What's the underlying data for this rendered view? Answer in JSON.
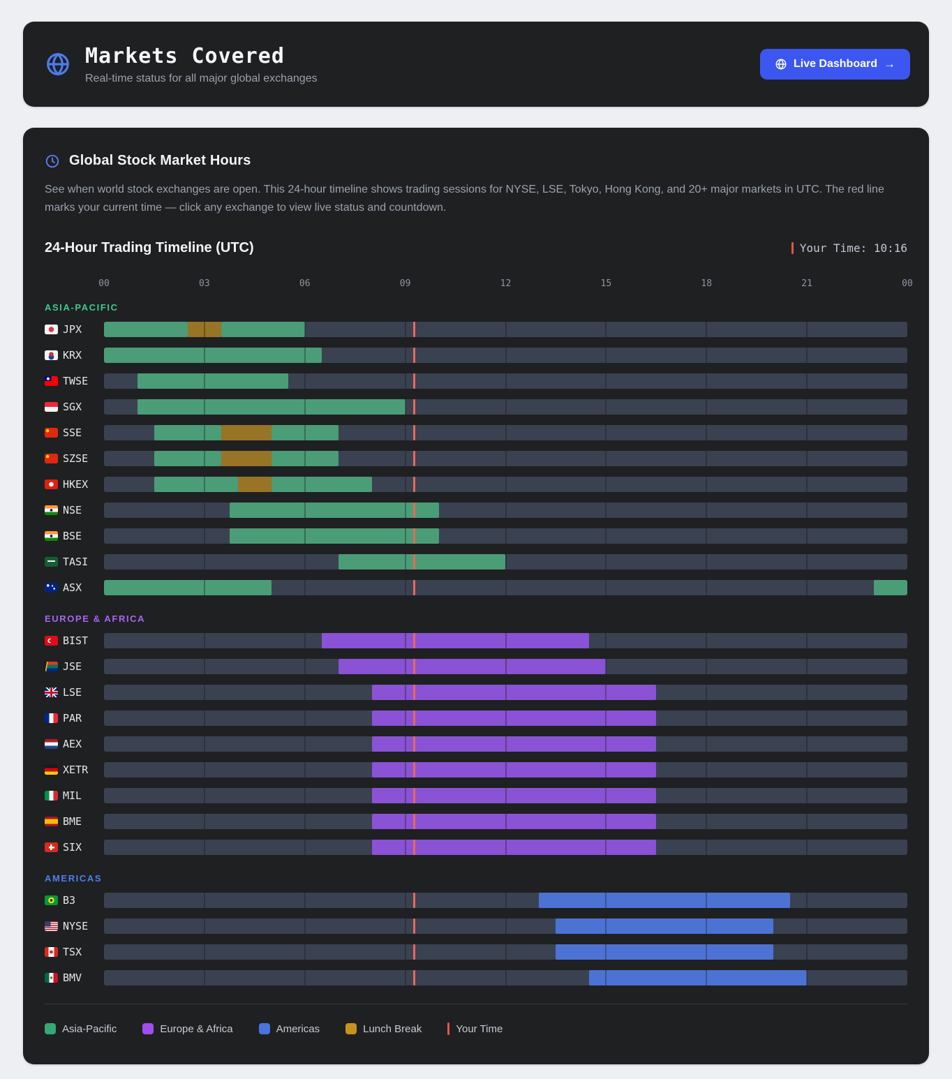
{
  "header": {
    "title": "Markets Covered",
    "subtitle": "Real-time status for all major global exchanges",
    "live_dashboard_button": "Live Dashboard",
    "arrow": "→"
  },
  "market_hours": {
    "heading": "Global Stock Market Hours",
    "description": "See when world stock exchanges are open. This 24-hour timeline shows trading sessions for NYSE, LSE, Tokyo, Hong Kong, and 20+ major markets in UTC. The red line marks your current time — click any exchange to view live status and countdown.",
    "timeline_title": "24-Hour Trading Timeline (UTC)",
    "your_time": "Your Time: 10:16",
    "axis_ticks": [
      "00",
      "03",
      "06",
      "09",
      "12",
      "15",
      "18",
      "21",
      "00"
    ]
  },
  "chart_data": {
    "type": "timeline-gantt",
    "title": "24-Hour Trading Timeline (UTC)",
    "x_axis": {
      "unit": "UTC hours",
      "range": [
        0,
        24
      ],
      "ticks": [
        0,
        3,
        6,
        9,
        12,
        15,
        18,
        21,
        24
      ]
    },
    "your_time_utc_hours": 9.27,
    "colors": {
      "track": "#3a4150",
      "lunch": "#987427",
      "your_time_line": "#e8695a"
    },
    "sections": [
      {
        "name": "ASIA-PACIFIC",
        "header_color": "#3dcb8b",
        "bar_color": "#4a9d77",
        "rows": [
          {
            "code": "JPX",
            "flag": "jp",
            "segments": [
              {
                "start": 0,
                "end": 2.5,
                "kind": "session"
              },
              {
                "start": 2.5,
                "end": 3.5,
                "kind": "lunch"
              },
              {
                "start": 3.5,
                "end": 6,
                "kind": "session"
              }
            ]
          },
          {
            "code": "KRX",
            "flag": "kr",
            "segments": [
              {
                "start": 0,
                "end": 6.5,
                "kind": "session"
              }
            ]
          },
          {
            "code": "TWSE",
            "flag": "tw",
            "segments": [
              {
                "start": 1,
                "end": 5.5,
                "kind": "session"
              }
            ]
          },
          {
            "code": "SGX",
            "flag": "sg",
            "segments": [
              {
                "start": 1,
                "end": 9,
                "kind": "session"
              }
            ]
          },
          {
            "code": "SSE",
            "flag": "cn",
            "segments": [
              {
                "start": 1.5,
                "end": 3.5,
                "kind": "session"
              },
              {
                "start": 3.5,
                "end": 5,
                "kind": "lunch"
              },
              {
                "start": 5,
                "end": 7,
                "kind": "session"
              }
            ]
          },
          {
            "code": "SZSE",
            "flag": "cn",
            "segments": [
              {
                "start": 1.5,
                "end": 3.5,
                "kind": "session"
              },
              {
                "start": 3.5,
                "end": 5,
                "kind": "lunch"
              },
              {
                "start": 5,
                "end": 7,
                "kind": "session"
              }
            ]
          },
          {
            "code": "HKEX",
            "flag": "hk",
            "segments": [
              {
                "start": 1.5,
                "end": 4,
                "kind": "session"
              },
              {
                "start": 4,
                "end": 5,
                "kind": "lunch"
              },
              {
                "start": 5,
                "end": 8,
                "kind": "session"
              }
            ]
          },
          {
            "code": "NSE",
            "flag": "in",
            "segments": [
              {
                "start": 3.75,
                "end": 10,
                "kind": "session"
              }
            ]
          },
          {
            "code": "BSE",
            "flag": "in",
            "segments": [
              {
                "start": 3.75,
                "end": 10,
                "kind": "session"
              }
            ]
          },
          {
            "code": "TASI",
            "flag": "sa",
            "segments": [
              {
                "start": 7,
                "end": 12,
                "kind": "session"
              }
            ]
          },
          {
            "code": "ASX",
            "flag": "au",
            "segments": [
              {
                "start": 0,
                "end": 5,
                "kind": "session"
              },
              {
                "start": 23,
                "end": 24,
                "kind": "session"
              }
            ]
          }
        ]
      },
      {
        "name": "EUROPE & AFRICA",
        "header_color": "#a666f2",
        "bar_color": "#8a52d4",
        "rows": [
          {
            "code": "BIST",
            "flag": "tr",
            "segments": [
              {
                "start": 6.5,
                "end": 14.5,
                "kind": "session"
              }
            ]
          },
          {
            "code": "JSE",
            "flag": "za",
            "segments": [
              {
                "start": 7,
                "end": 15,
                "kind": "session"
              }
            ]
          },
          {
            "code": "LSE",
            "flag": "gb",
            "segments": [
              {
                "start": 8,
                "end": 16.5,
                "kind": "session"
              }
            ]
          },
          {
            "code": "PAR",
            "flag": "fr",
            "segments": [
              {
                "start": 8,
                "end": 16.5,
                "kind": "session"
              }
            ]
          },
          {
            "code": "AEX",
            "flag": "nl",
            "segments": [
              {
                "start": 8,
                "end": 16.5,
                "kind": "session"
              }
            ]
          },
          {
            "code": "XETR",
            "flag": "de",
            "segments": [
              {
                "start": 8,
                "end": 16.5,
                "kind": "session"
              }
            ]
          },
          {
            "code": "MIL",
            "flag": "it",
            "segments": [
              {
                "start": 8,
                "end": 16.5,
                "kind": "session"
              }
            ]
          },
          {
            "code": "BME",
            "flag": "es",
            "segments": [
              {
                "start": 8,
                "end": 16.5,
                "kind": "session"
              }
            ]
          },
          {
            "code": "SIX",
            "flag": "ch",
            "segments": [
              {
                "start": 8,
                "end": 16.5,
                "kind": "session"
              }
            ]
          }
        ]
      },
      {
        "name": "AMERICAS",
        "header_color": "#4d7ef2",
        "bar_color": "#4c73d4",
        "rows": [
          {
            "code": "B3",
            "flag": "br",
            "segments": [
              {
                "start": 13,
                "end": 20.5,
                "kind": "session"
              }
            ]
          },
          {
            "code": "NYSE",
            "flag": "us",
            "segments": [
              {
                "start": 13.5,
                "end": 20,
                "kind": "session"
              }
            ]
          },
          {
            "code": "TSX",
            "flag": "ca",
            "segments": [
              {
                "start": 13.5,
                "end": 20,
                "kind": "session"
              }
            ]
          },
          {
            "code": "BMV",
            "flag": "mx",
            "segments": [
              {
                "start": 14.5,
                "end": 21,
                "kind": "session"
              }
            ]
          }
        ]
      }
    ]
  },
  "legend": [
    {
      "label": "Asia-Pacific",
      "color": "#36a873",
      "shape": "square"
    },
    {
      "label": "Europe & Africa",
      "color": "#a04ef0",
      "shape": "square"
    },
    {
      "label": "Americas",
      "color": "#4a74dd",
      "shape": "square"
    },
    {
      "label": "Lunch Break",
      "color": "#c8931d",
      "shape": "square"
    },
    {
      "label": "Your Time",
      "color": "#e0564a",
      "shape": "line"
    }
  ]
}
